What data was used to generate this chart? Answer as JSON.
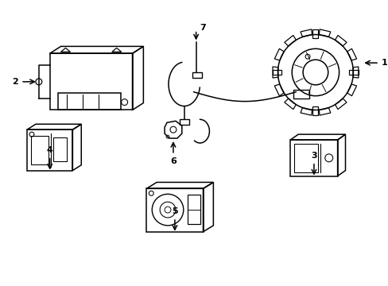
{
  "bg_color": "#ffffff",
  "line_color": "#000000",
  "lw": 1.1,
  "fig_width": 4.89,
  "fig_height": 3.6,
  "dpi": 100
}
